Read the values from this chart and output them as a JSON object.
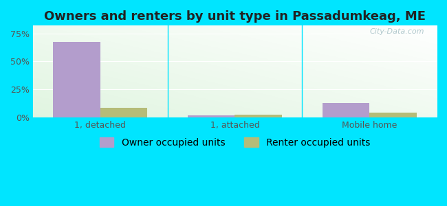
{
  "title": "Owners and renters by unit type in Passadumkeag, ME",
  "categories": [
    "1, detached",
    "1, attached",
    "Mobile home"
  ],
  "owner_values": [
    67.5,
    1.5,
    13.0
  ],
  "renter_values": [
    8.5,
    2.5,
    4.5
  ],
  "owner_color": "#b39dcc",
  "renter_color": "#b5bc78",
  "yticks": [
    0,
    25,
    50,
    75
  ],
  "ytick_labels": [
    "0%",
    "25%",
    "50%",
    "75%"
  ],
  "ylim": [
    0,
    82
  ],
  "bar_width": 0.35,
  "outer_bg": "#00e5ff",
  "legend_owner": "Owner occupied units",
  "legend_renter": "Renter occupied units",
  "title_fontsize": 13,
  "axis_fontsize": 9,
  "legend_fontsize": 10,
  "watermark": "City-Data.com"
}
